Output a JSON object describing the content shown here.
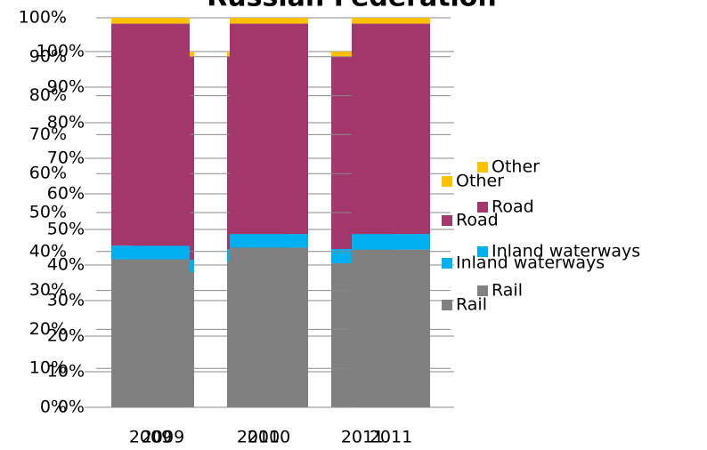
{
  "chart_data": [
    {
      "type": "stacked_bar",
      "categories": [
        "2009",
        "2010",
        "2011"
      ],
      "series": [
        {
          "name": "Rail",
          "color": "#808080",
          "values": [
            38,
            41,
            40.5
          ]
        },
        {
          "name": "Inland waterways",
          "color": "#00b0f0",
          "values": [
            3.5,
            3.5,
            4
          ]
        },
        {
          "name": "Road",
          "color": "#a3376b",
          "values": [
            57,
            54,
            54
          ]
        },
        {
          "name": "Other",
          "color": "#ffc000",
          "values": [
            1.5,
            1.5,
            1.5
          ]
        }
      ],
      "ylim": [
        0,
        100
      ],
      "yticks": [
        {
          "value": 0,
          "label": "0%"
        },
        {
          "value": 10,
          "label": "10%"
        },
        {
          "value": 20,
          "label": "20%"
        },
        {
          "value": 30,
          "label": "30%"
        },
        {
          "value": 40,
          "label": "40%"
        },
        {
          "value": 50,
          "label": "50%"
        },
        {
          "value": 60,
          "label": "60%"
        },
        {
          "value": 70,
          "label": "70%"
        },
        {
          "value": 80,
          "label": "80%"
        },
        {
          "value": 90,
          "label": "90%"
        },
        {
          "value": 100,
          "label": "100%"
        }
      ],
      "grid": true,
      "legend": "right"
    },
    {
      "type": "stacked_bar",
      "title": "Russian Federation",
      "categories": [
        "2009",
        "2010",
        "2011"
      ],
      "series": [
        {
          "name": "Rail",
          "color": "#808080",
          "values": [
            38,
            41,
            40.5
          ]
        },
        {
          "name": "Inland waterways",
          "color": "#00b0f0",
          "values": [
            3.5,
            3.5,
            4
          ]
        },
        {
          "name": "Road",
          "color": "#a3376b",
          "values": [
            57,
            54,
            54
          ]
        },
        {
          "name": "Other",
          "color": "#ffc000",
          "values": [
            1.5,
            1.5,
            1.5
          ]
        }
      ],
      "ylim": [
        0,
        100
      ],
      "yticks": [
        {
          "value": 0,
          "label": "0%"
        },
        {
          "value": 10,
          "label": "10%"
        },
        {
          "value": 20,
          "label": "20%"
        },
        {
          "value": 30,
          "label": "30%"
        },
        {
          "value": 40,
          "label": "40%"
        },
        {
          "value": 50,
          "label": "50%"
        },
        {
          "value": 60,
          "label": "60%"
        },
        {
          "value": 70,
          "label": "70%"
        },
        {
          "value": 80,
          "label": "80%"
        },
        {
          "value": 90,
          "label": "90%"
        },
        {
          "value": 100,
          "label": "100%"
        }
      ],
      "grid": true,
      "legend": "right"
    }
  ]
}
